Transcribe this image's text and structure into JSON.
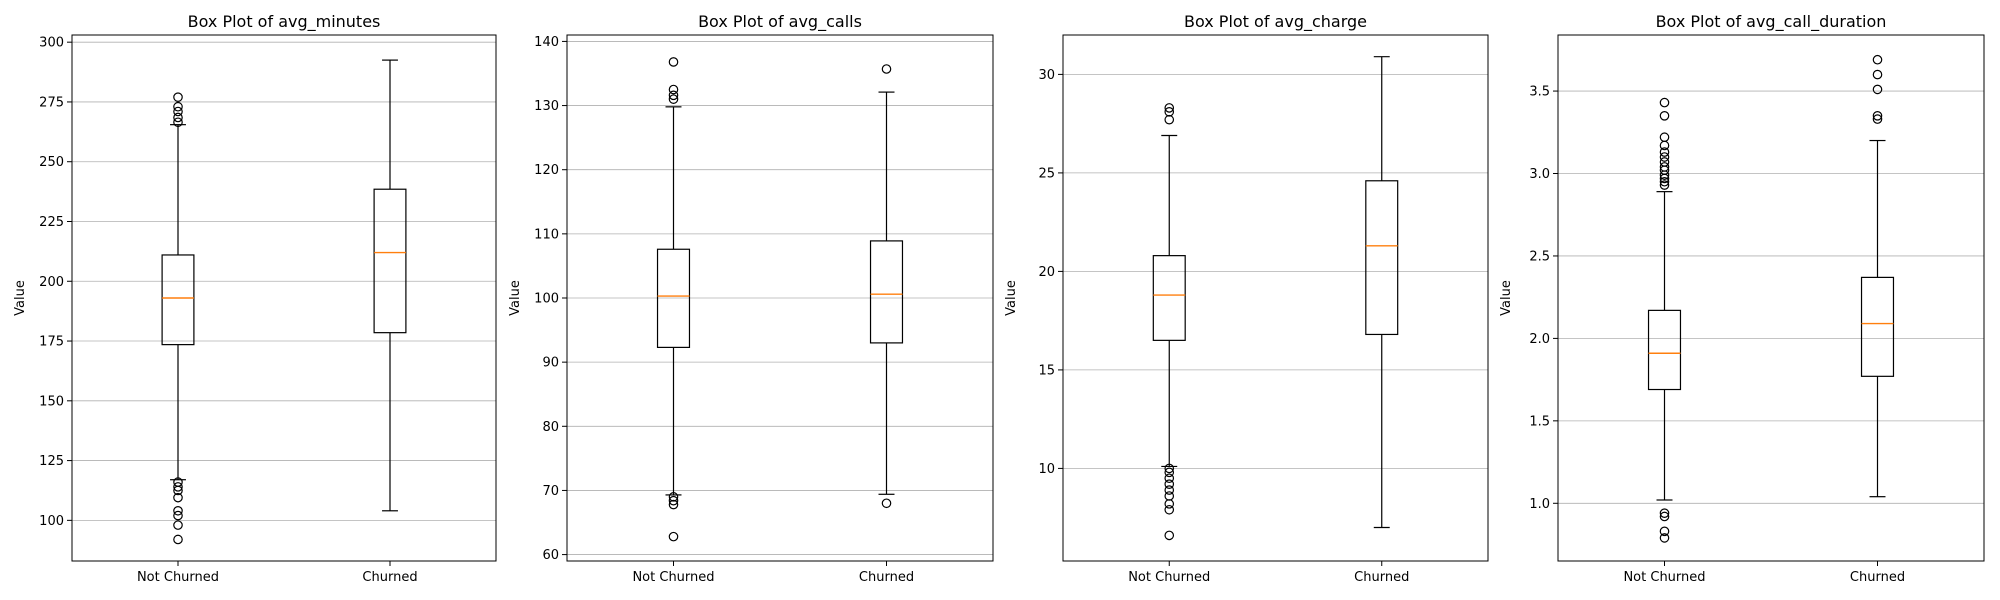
{
  "chart_data": [
    {
      "type": "boxplot",
      "title": "Box Plot of avg_minutes",
      "xlabel": "",
      "ylabel": "Value",
      "categories": [
        "Not Churned",
        "Churned"
      ],
      "ylim": [
        83,
        303
      ],
      "yticks": [
        100,
        125,
        150,
        175,
        200,
        225,
        250,
        275,
        300
      ],
      "ytick_labels": [
        "100",
        "125",
        "150",
        "175",
        "200",
        "225",
        "250",
        "275",
        "300"
      ],
      "grid": "y",
      "boxes": [
        {
          "category": "Not Churned",
          "q1": 173.5,
          "median": 193,
          "q3": 211,
          "whisker_low": 117,
          "whisker_high": 265.5,
          "outliers": [
            277,
            273,
            271,
            268.5,
            266.5,
            116,
            114,
            112.5,
            109.5,
            104,
            102,
            98,
            92
          ]
        },
        {
          "category": "Churned",
          "q1": 178.5,
          "median": 212,
          "q3": 238.5,
          "whisker_low": 104,
          "whisker_high": 292.5,
          "outliers": []
        }
      ]
    },
    {
      "type": "boxplot",
      "title": "Box Plot of avg_calls",
      "xlabel": "",
      "ylabel": "Value",
      "categories": [
        "Not Churned",
        "Churned"
      ],
      "ylim": [
        59,
        141
      ],
      "yticks": [
        60,
        70,
        80,
        90,
        100,
        110,
        120,
        130,
        140
      ],
      "ytick_labels": [
        "60",
        "70",
        "80",
        "90",
        "100",
        "110",
        "120",
        "130",
        "140"
      ],
      "grid": "y",
      "boxes": [
        {
          "category": "Not Churned",
          "q1": 92.3,
          "median": 100.3,
          "q3": 107.6,
          "whisker_low": 69.3,
          "whisker_high": 129.8,
          "outliers": [
            136.8,
            132.5,
            131.6,
            131.0,
            69.0,
            68.4,
            67.8,
            62.8
          ]
        },
        {
          "category": "Churned",
          "q1": 93.0,
          "median": 100.6,
          "q3": 108.9,
          "whisker_low": 69.4,
          "whisker_high": 132.1,
          "outliers": [
            135.7,
            68.0
          ]
        }
      ]
    },
    {
      "type": "boxplot",
      "title": "Box Plot of avg_charge",
      "xlabel": "",
      "ylabel": "Value",
      "categories": [
        "Not Churned",
        "Churned"
      ],
      "ylim": [
        5.3,
        32.0
      ],
      "yticks": [
        10,
        15,
        20,
        25,
        30
      ],
      "ytick_labels": [
        "10",
        "15",
        "20",
        "25",
        "30"
      ],
      "grid": "y",
      "boxes": [
        {
          "category": "Not Churned",
          "q1": 16.5,
          "median": 18.8,
          "q3": 20.8,
          "whisker_low": 10.1,
          "whisker_high": 26.9,
          "outliers": [
            28.3,
            28.1,
            27.7,
            10.0,
            9.8,
            9.5,
            9.2,
            8.9,
            8.6,
            8.2,
            7.9,
            6.6
          ]
        },
        {
          "category": "Churned",
          "q1": 16.8,
          "median": 21.3,
          "q3": 24.6,
          "whisker_low": 7.0,
          "whisker_high": 30.9,
          "outliers": []
        }
      ]
    },
    {
      "type": "boxplot",
      "title": "Box Plot of avg_call_duration",
      "xlabel": "",
      "ylabel": "Value",
      "categories": [
        "Not Churned",
        "Churned"
      ],
      "ylim": [
        0.65,
        3.84
      ],
      "yticks": [
        1.0,
        1.5,
        2.0,
        2.5,
        3.0,
        3.5
      ],
      "ytick_labels": [
        "1.0",
        "1.5",
        "2.0",
        "2.5",
        "3.0",
        "3.5"
      ],
      "grid": "y",
      "boxes": [
        {
          "category": "Not Churned",
          "q1": 1.69,
          "median": 1.91,
          "q3": 2.17,
          "whisker_low": 1.02,
          "whisker_high": 2.89,
          "outliers": [
            3.43,
            3.35,
            3.22,
            3.17,
            3.13,
            3.1,
            3.07,
            3.04,
            3.02,
            2.99,
            2.97,
            2.95,
            2.93,
            0.94,
            0.92,
            0.83,
            0.79
          ]
        },
        {
          "category": "Churned",
          "q1": 1.77,
          "median": 2.09,
          "q3": 2.37,
          "whisker_low": 1.04,
          "whisker_high": 3.2,
          "outliers": [
            3.69,
            3.6,
            3.51,
            3.35,
            3.33
          ]
        }
      ]
    }
  ],
  "colors": {
    "box": "#000000",
    "median": "#ff7f0e",
    "grid": "#b0b0b0",
    "outlier_edge": "#000000",
    "background": "#ffffff"
  }
}
